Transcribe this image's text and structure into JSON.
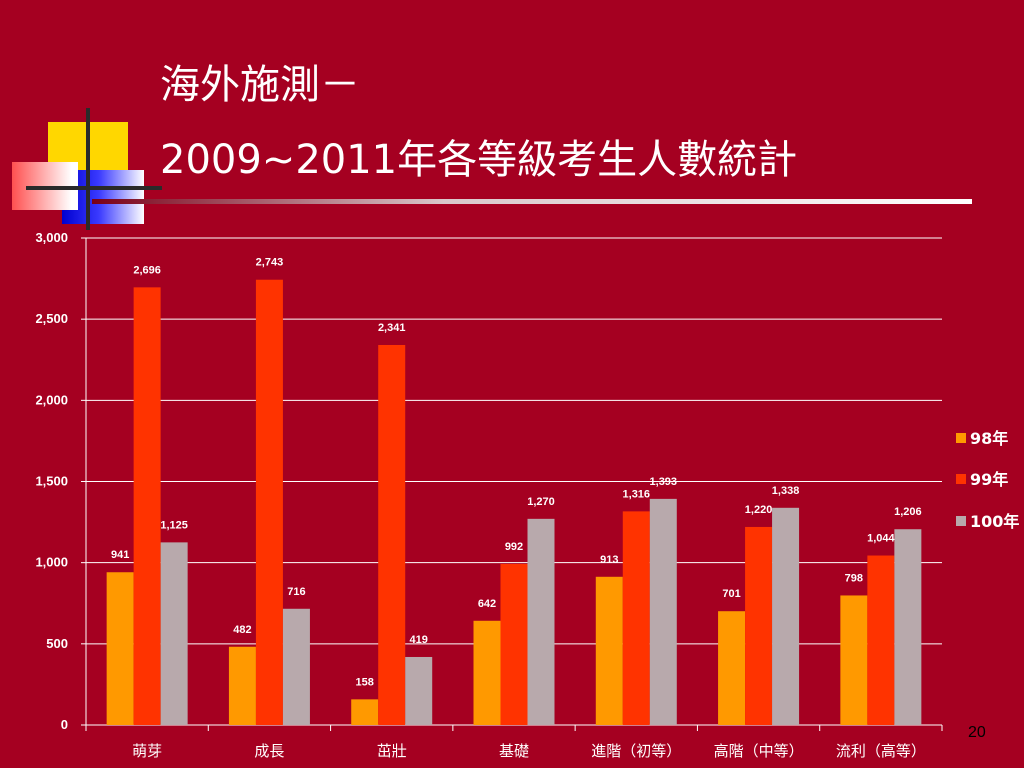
{
  "slide": {
    "title_line1": "海外施測－",
    "title_line2": "2009~2011年各等級考生人數統計",
    "page_number": "20"
  },
  "colors": {
    "background": "#A50021",
    "series_98": "#FF9900",
    "series_99": "#FF3300",
    "series_100": "#B8A9AC"
  },
  "chart_data": {
    "type": "bar",
    "categories": [
      "萌芽",
      "成長",
      "茁壯",
      "基礎",
      "進階（初等）",
      "高階（中等）",
      "流利（高等）"
    ],
    "series": [
      {
        "name": "98年",
        "values": [
          941,
          482,
          158,
          642,
          913,
          701,
          798
        ]
      },
      {
        "name": "99年",
        "values": [
          2696,
          2743,
          2341,
          992,
          1316,
          1220,
          1044
        ]
      },
      {
        "name": "100年",
        "values": [
          1125,
          716,
          419,
          1270,
          1393,
          1338,
          1206
        ]
      }
    ],
    "value_labels": [
      [
        "941",
        "482",
        "158",
        "642",
        "913",
        "701",
        "798"
      ],
      [
        "2,696",
        "2,743",
        "2,341",
        "992",
        "1,316",
        "1,220",
        "1,044"
      ],
      [
        "1,125",
        "716",
        "419",
        "1,270",
        "1,393",
        "1,338",
        "1,206"
      ]
    ],
    "yticks": [
      "0",
      "500",
      "1,000",
      "1,500",
      "2,000",
      "2,500",
      "3,000"
    ],
    "ytick_values": [
      0,
      500,
      1000,
      1500,
      2000,
      2500,
      3000
    ],
    "ylim": [
      0,
      3000
    ],
    "grid": true,
    "legend_position": "right"
  }
}
